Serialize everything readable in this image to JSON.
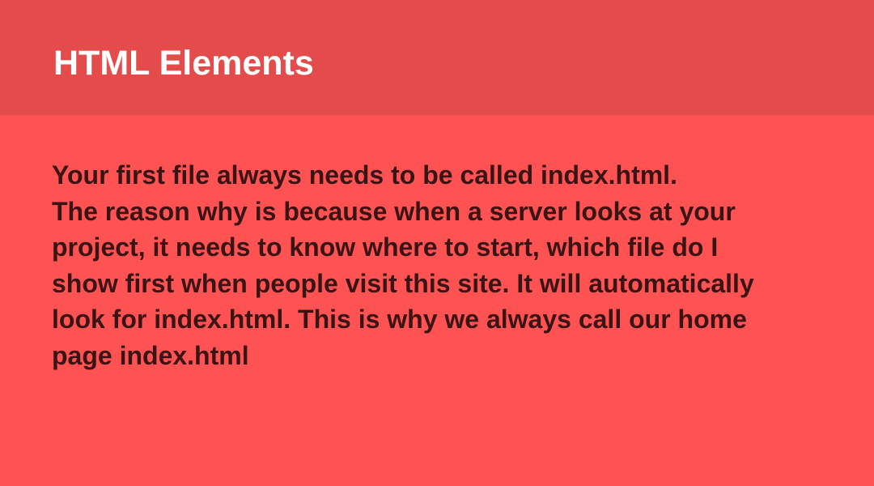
{
  "slide": {
    "title": "HTML Elements",
    "body_lines": [
      "Your first file always needs to be called index.html.",
      "The reason why is because when a server looks at your",
      "project, it needs to know where to start, which file do I",
      "show first when people visit this site. It will automatically",
      "look for index.html. This is why we always call our home",
      "page index.html"
    ]
  },
  "colors": {
    "background": "#ff5252",
    "title_bar": "#e44c4c",
    "title_text": "#ffffff",
    "body_text": "#3a1414"
  }
}
